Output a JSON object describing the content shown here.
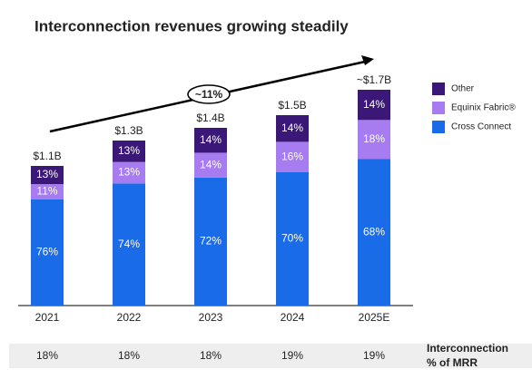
{
  "chart_data": {
    "type": "bar",
    "stacked": true,
    "title": "Interconnection revenues growing steadily",
    "categories": [
      "2021",
      "2022",
      "2023",
      "2024",
      "2025E"
    ],
    "totals": {
      "values": [
        1.1,
        1.3,
        1.4,
        1.5,
        1.7
      ],
      "value_labels": [
        "$1.1B",
        "$1.3B",
        "$1.4B",
        "$1.5B",
        "~$1.7B"
      ]
    },
    "series": [
      {
        "name": "Cross Connect",
        "color": "#1a6be8",
        "values": [
          76,
          74,
          72,
          70,
          68
        ],
        "value_labels": [
          "76%",
          "74%",
          "72%",
          "70%",
          "68%"
        ]
      },
      {
        "name": "Equinix Fabric®",
        "color": "#a67cf0",
        "values": [
          11,
          13,
          14,
          16,
          18
        ],
        "value_labels": [
          "11%",
          "13%",
          "14%",
          "16%",
          "18%"
        ]
      },
      {
        "name": "Other",
        "color": "#3b1878",
        "values": [
          13,
          13,
          14,
          14,
          14
        ],
        "value_labels": [
          "13%",
          "13%",
          "14%",
          "14%",
          "14%"
        ]
      }
    ],
    "annotation": "~11%",
    "legend": "top-right",
    "mrr": {
      "label": [
        "Interconnection",
        "% of MRR"
      ],
      "values": [
        18,
        18,
        18,
        19,
        19
      ],
      "value_labels": [
        "18%",
        "18%",
        "18%",
        "19%",
        "19%"
      ]
    }
  }
}
